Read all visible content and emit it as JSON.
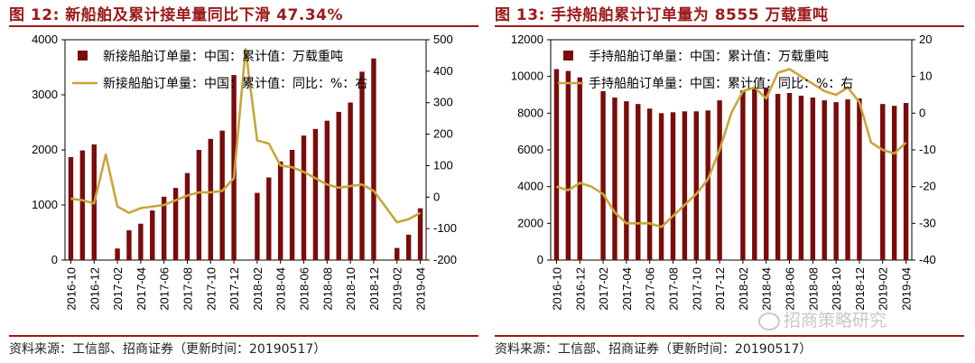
{
  "colors": {
    "bar": "#7a0c0c",
    "line": "#c7a63a",
    "title": "#9c1a1a"
  },
  "panels": [
    {
      "title": "图 12:  新船舶及累计接单量同比下滑 47.34%",
      "source": "资料来源：工信部、招商证券（更新时间：20190517）"
    },
    {
      "title": "图 13:  手持船舶累计订单量为 8555 万载重吨",
      "source": "资料来源：工信部、招商证券（更新时间：20190517）"
    }
  ],
  "watermark": "招商策略研究",
  "chart_data": [
    {
      "type": "bar",
      "categories": [
        "2016-10",
        "2016-11",
        "2016-12",
        "2017-01",
        "2017-02",
        "2017-03",
        "2017-04",
        "2017-05",
        "2017-06",
        "2017-07",
        "2017-08",
        "2017-09",
        "2017-10",
        "2017-11",
        "2017-12",
        "2018-01",
        "2018-02",
        "2018-03",
        "2018-04",
        "2018-05",
        "2018-06",
        "2018-07",
        "2018-08",
        "2018-09",
        "2018-10",
        "2018-11",
        "2018-12",
        "2019-01",
        "2019-02",
        "2019-03",
        "2019-04"
      ],
      "tick_labels": [
        "2016-10",
        "2016-12",
        "2017-02",
        "2017-04",
        "2017-06",
        "2017-08",
        "2017-10",
        "2017-12",
        "2018-02",
        "2018-04",
        "2018-06",
        "2018-08",
        "2018-10",
        "2018-12",
        "2019-02",
        "2019-04"
      ],
      "series": [
        {
          "name": "新接船舶订单量：中国：累计值：万载重吨",
          "kind": "bar",
          "axis": "left",
          "values": [
            1870,
            1990,
            2100,
            null,
            210,
            540,
            660,
            900,
            1150,
            1310,
            1580,
            2000,
            2200,
            2350,
            3360,
            null,
            1220,
            1500,
            1790,
            2000,
            2260,
            2380,
            2530,
            2690,
            2860,
            3420,
            3660,
            null,
            220,
            460,
            940
          ]
        },
        {
          "name": "新接船舶订单量：中国：累计值：同比：%：右",
          "kind": "line",
          "axis": "right",
          "values": [
            -5,
            -10,
            -20,
            135,
            -30,
            -50,
            -35,
            -30,
            -25,
            -10,
            5,
            15,
            15,
            20,
            60,
            470,
            180,
            170,
            100,
            95,
            80,
            60,
            40,
            30,
            35,
            40,
            20,
            -30,
            -80,
            -70,
            -50
          ]
        }
      ],
      "ylim_left": [
        0,
        4000
      ],
      "yticks_left": [
        0,
        1000,
        2000,
        3000,
        4000
      ],
      "ylim_right": [
        -200,
        500
      ],
      "yticks_right": [
        -200,
        -100,
        0,
        100,
        200,
        300,
        400,
        500
      ],
      "legend": "top-left"
    },
    {
      "type": "bar",
      "categories": [
        "2016-10",
        "2016-11",
        "2016-12",
        "2017-01",
        "2017-02",
        "2017-03",
        "2017-04",
        "2017-05",
        "2017-06",
        "2017-07",
        "2017-08",
        "2017-09",
        "2017-10",
        "2017-11",
        "2017-12",
        "2018-01",
        "2018-02",
        "2018-03",
        "2018-04",
        "2018-05",
        "2018-06",
        "2018-07",
        "2018-08",
        "2018-09",
        "2018-10",
        "2018-11",
        "2018-12",
        "2019-01",
        "2019-02",
        "2019-03",
        "2019-04"
      ],
      "tick_labels": [
        "2016-10",
        "2016-12",
        "2017-02",
        "2017-04",
        "2017-06",
        "2017-08",
        "2017-10",
        "2017-12",
        "2018-02",
        "2018-04",
        "2018-06",
        "2018-08",
        "2018-10",
        "2018-12",
        "2019-02",
        "2019-04"
      ],
      "series": [
        {
          "name": "手持船舶订单量：中国：累计值：万载重吨",
          "kind": "bar",
          "axis": "left",
          "values": [
            10400,
            10300,
            9950,
            null,
            9200,
            8850,
            8650,
            8500,
            8250,
            8000,
            8050,
            8100,
            8100,
            8150,
            8700,
            null,
            9250,
            9400,
            9400,
            9050,
            9100,
            8950,
            8850,
            8700,
            8600,
            8750,
            8800,
            null,
            8500,
            8400,
            8555
          ]
        },
        {
          "name": "手持船舶订单量：中国：累计值：同比：%：右",
          "kind": "line",
          "axis": "right",
          "values": [
            -20,
            -21,
            -19,
            -20,
            -22,
            -27,
            -30,
            -30,
            -30,
            -31,
            -28,
            -25,
            -22,
            -18,
            -10,
            0,
            6,
            7,
            4,
            11,
            12,
            10,
            8,
            6,
            5,
            7,
            3,
            -8,
            -10,
            -11,
            -8
          ]
        }
      ],
      "ylim_left": [
        0,
        12000
      ],
      "yticks_left": [
        0,
        2000,
        4000,
        6000,
        8000,
        10000,
        12000
      ],
      "ylim_right": [
        -40,
        20
      ],
      "yticks_right": [
        -40,
        -30,
        -20,
        -10,
        0,
        10,
        20
      ],
      "legend": "top-left"
    }
  ]
}
